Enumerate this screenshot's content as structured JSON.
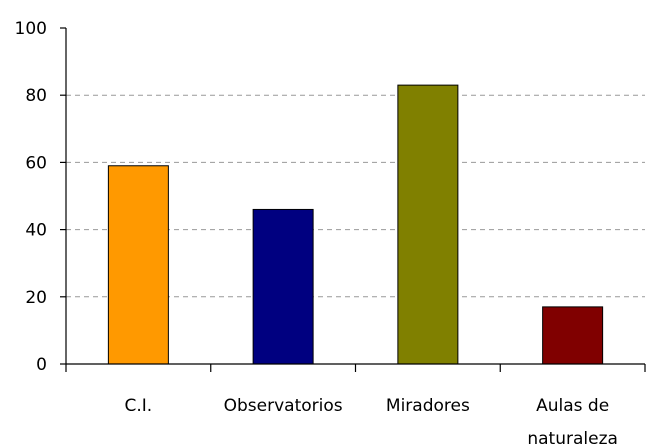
{
  "chart_data": {
    "type": "bar",
    "categories": [
      "C.I.",
      "Observatorios",
      "Miradores",
      "Aulas de naturaleza"
    ],
    "category_label_lines": [
      [
        "C.I."
      ],
      [
        "Observatorios"
      ],
      [
        "Miradores"
      ],
      [
        "Aulas de",
        "naturaleza"
      ]
    ],
    "values": [
      59,
      46,
      83,
      17
    ],
    "colors": [
      "#FF9900",
      "#000080",
      "#808000",
      "#800000"
    ],
    "ylim": [
      0,
      100
    ],
    "yticks": [
      0,
      20,
      40,
      60,
      80,
      100
    ],
    "title": "",
    "xlabel": "",
    "ylabel": "",
    "grid": true,
    "legend": false
  }
}
